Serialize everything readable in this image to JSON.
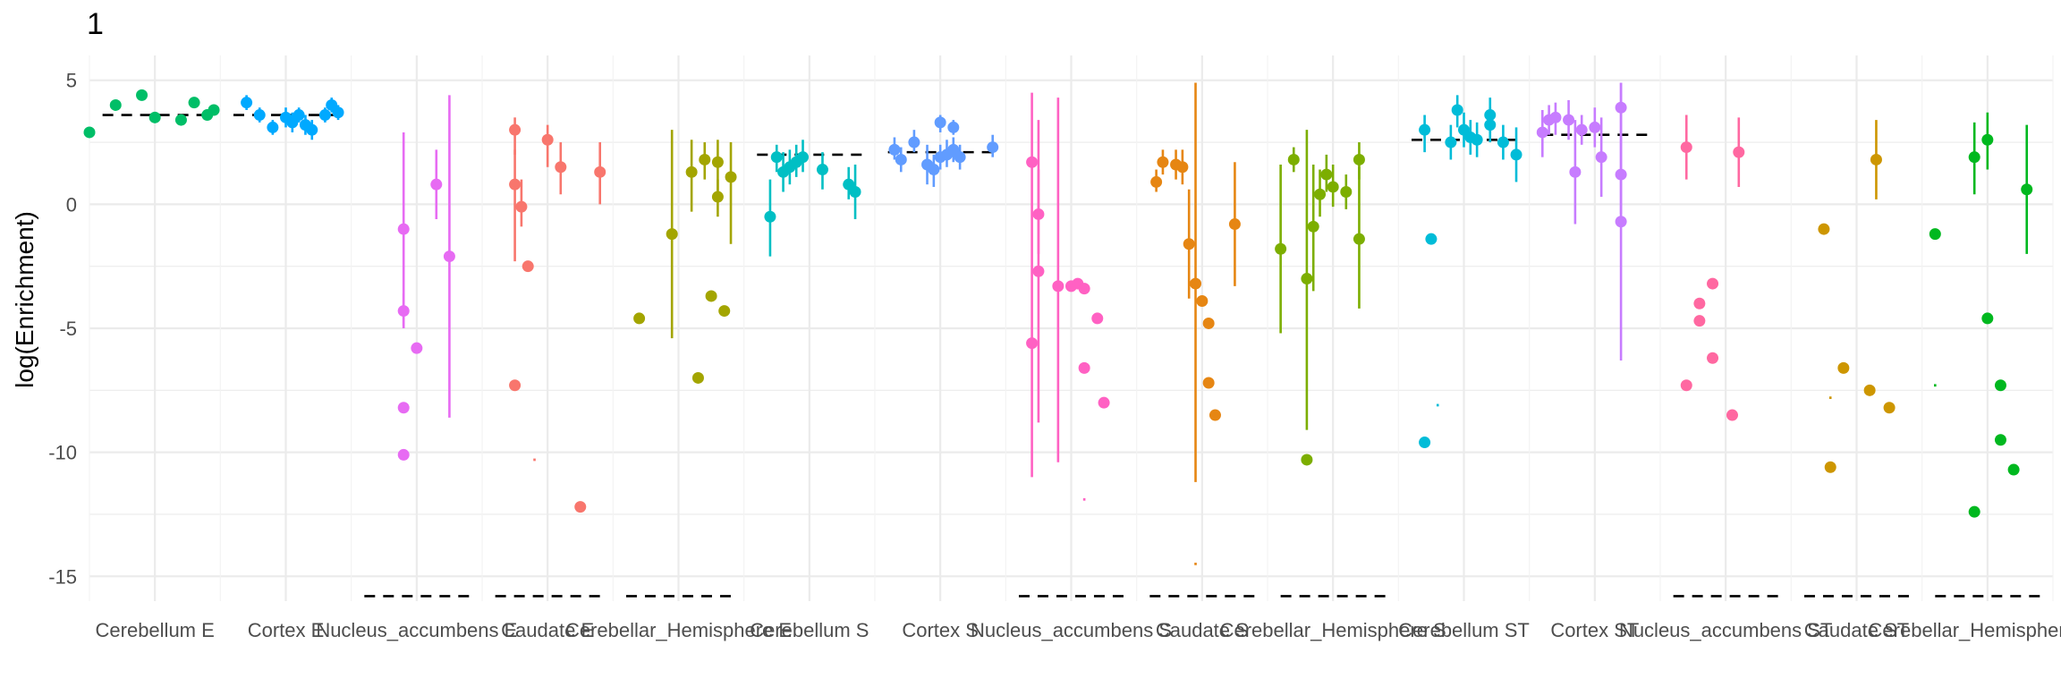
{
  "chart_data": {
    "type": "scatter",
    "title": "1",
    "xlabel": "",
    "ylabel": "log(Enrichment)",
    "ylim": [
      -16,
      6
    ],
    "yticks": [
      5,
      0,
      -5,
      -10,
      -15
    ],
    "grid": true,
    "legend": "none",
    "categories": [
      "Cerebellum E",
      "Cortex E",
      "Nucleus_accumbens E",
      "Caudate E",
      "Cerebellar_Hemisphere E",
      "Cerebellum S",
      "Cortex S",
      "Nucleus_accumbens S",
      "Caudate S",
      "Cerebellar_Hemisphere S",
      "Cerebellum ST",
      "Cortex ST",
      "Nucleus_accumbens ST",
      "Caudate ST",
      "Cerebellar_Hemisphere ST"
    ],
    "colors": [
      "#00BE67",
      "#00A9FF",
      "#E76BF3",
      "#F8766D",
      "#A3A500",
      "#00BFC4",
      "#619CFF",
      "#FF61C3",
      "#E68613",
      "#7CAE00",
      "#00BCD8",
      "#C77CFF",
      "#FF68A1",
      "#CD9600",
      "#00B81F"
    ],
    "reference_lines": [
      3.6,
      3.6,
      -15.8,
      -15.8,
      -15.8,
      2.0,
      2.1,
      -15.8,
      -15.8,
      -15.8,
      2.6,
      2.8,
      -15.8,
      -15.8,
      -15.8
    ],
    "points": [
      [
        [
          -0.5,
          2.9
        ],
        [
          -0.3,
          4.0
        ],
        [
          -0.1,
          4.4
        ],
        [
          0.0,
          3.5
        ],
        [
          0.2,
          3.4
        ],
        [
          0.3,
          4.1
        ],
        [
          0.4,
          3.6
        ],
        [
          0.45,
          3.8
        ]
      ],
      [
        [
          -0.3,
          4.1,
          3.8,
          4.4
        ],
        [
          -0.2,
          3.6,
          3.3,
          3.9
        ],
        [
          -0.1,
          3.1,
          2.8,
          3.4
        ],
        [
          0.0,
          3.5,
          3.1,
          3.9
        ],
        [
          0.05,
          3.3,
          2.9,
          3.7
        ],
        [
          0.1,
          3.6,
          3.3,
          3.9
        ],
        [
          0.15,
          3.2,
          2.8,
          3.6
        ],
        [
          0.2,
          3.0,
          2.6,
          3.4
        ],
        [
          0.3,
          3.6,
          3.3,
          3.9
        ],
        [
          0.35,
          4.0,
          3.7,
          4.3
        ],
        [
          0.4,
          3.7,
          3.4,
          4.0
        ]
      ],
      [
        [
          -0.1,
          -1.0,
          -4.9,
          2.9
        ],
        [
          -0.1,
          -4.3,
          -5.0,
          -3.6
        ],
        [
          -0.1,
          -8.2
        ],
        [
          -0.1,
          -10.1
        ],
        [
          0.0,
          -5.8
        ],
        [
          0.15,
          0.8,
          -0.6,
          2.2
        ],
        [
          0.25,
          -2.1,
          -8.6,
          4.4
        ]
      ],
      [
        [
          -0.25,
          3.0,
          2.0,
          3.5
        ],
        [
          -0.25,
          0.8,
          -2.3,
          2.2
        ],
        [
          -0.2,
          -0.1,
          -0.9,
          1.0
        ],
        [
          -0.15,
          -2.5
        ],
        [
          -0.25,
          -7.3
        ],
        [
          -0.1,
          -10.3,
          -10.25,
          -10.35
        ],
        [
          0.0,
          2.6,
          1.5,
          3.2
        ],
        [
          0.1,
          1.5,
          0.4,
          2.5
        ],
        [
          0.25,
          -12.2
        ],
        [
          0.4,
          1.3,
          0.0,
          2.5
        ]
      ],
      [
        [
          -0.05,
          -1.2,
          -5.4,
          3.0
        ],
        [
          -0.3,
          -4.6
        ],
        [
          0.1,
          1.3,
          -0.3,
          2.6
        ],
        [
          0.15,
          -7.0
        ],
        [
          0.2,
          1.8,
          1.0,
          2.5
        ],
        [
          0.25,
          -3.7
        ],
        [
          0.3,
          0.3,
          -0.5,
          1.0
        ],
        [
          0.3,
          1.7,
          0.5,
          2.6
        ],
        [
          0.35,
          -4.3
        ],
        [
          0.4,
          1.1,
          -1.6,
          2.5
        ]
      ],
      [
        [
          -0.3,
          -0.5,
          -2.1,
          1.0
        ],
        [
          -0.25,
          1.9,
          1.3,
          2.4
        ],
        [
          -0.2,
          1.3,
          0.5,
          2.1
        ],
        [
          -0.15,
          1.5,
          0.8,
          2.2
        ],
        [
          -0.1,
          1.7,
          1.1,
          2.4
        ],
        [
          -0.05,
          1.9,
          1.3,
          2.6
        ],
        [
          0.1,
          1.4,
          0.6,
          2.1
        ],
        [
          0.3,
          0.8,
          0.2,
          1.5
        ],
        [
          0.35,
          0.5,
          -0.6,
          1.6
        ]
      ],
      [
        [
          -0.35,
          2.2,
          1.8,
          2.7
        ],
        [
          -0.3,
          1.8,
          1.3,
          2.3
        ],
        [
          -0.2,
          2.5,
          2.1,
          3.0
        ],
        [
          -0.1,
          1.6,
          0.8,
          2.4
        ],
        [
          -0.05,
          1.4,
          0.7,
          2.0
        ],
        [
          0.0,
          3.3,
          2.9,
          3.6
        ],
        [
          0.0,
          1.9,
          1.4,
          2.4
        ],
        [
          0.05,
          2.0,
          1.5,
          2.6
        ],
        [
          0.1,
          3.1,
          2.8,
          3.4
        ],
        [
          0.1,
          2.2,
          1.7,
          2.7
        ],
        [
          0.15,
          1.9,
          1.4,
          2.4
        ],
        [
          0.4,
          2.3,
          1.9,
          2.8
        ]
      ],
      [
        [
          -0.3,
          1.7,
          -11.0,
          4.5
        ],
        [
          -0.25,
          -0.4,
          -2.0,
          1.4
        ],
        [
          -0.25,
          -2.7,
          -8.8,
          3.4
        ],
        [
          -0.3,
          -5.6
        ],
        [
          -0.1,
          -3.3,
          -10.4,
          4.3
        ],
        [
          0.0,
          -3.3
        ],
        [
          0.05,
          -3.2
        ],
        [
          0.1,
          -3.4
        ],
        [
          0.1,
          -6.6
        ],
        [
          0.1,
          -11.9,
          -11.85,
          -11.95
        ],
        [
          0.2,
          -4.6
        ],
        [
          0.25,
          -8.0
        ]
      ],
      [
        [
          -0.35,
          0.9,
          0.5,
          1.4
        ],
        [
          -0.3,
          1.7,
          1.2,
          2.2
        ],
        [
          -0.2,
          1.6,
          1.0,
          2.2
        ],
        [
          -0.15,
          1.5,
          0.8,
          2.2
        ],
        [
          -0.1,
          -1.6,
          -3.8,
          0.6
        ],
        [
          -0.05,
          -3.2,
          -11.2,
          4.9
        ],
        [
          0.0,
          -3.9
        ],
        [
          0.05,
          -4.8
        ],
        [
          0.05,
          -7.2
        ],
        [
          0.1,
          -8.5
        ],
        [
          0.25,
          -0.8,
          -3.3,
          1.7
        ],
        [
          -0.05,
          -14.5,
          -14.45,
          -14.55
        ]
      ],
      [
        [
          -0.4,
          -1.8,
          -5.2,
          1.6
        ],
        [
          -0.3,
          1.8,
          1.3,
          2.3
        ],
        [
          -0.2,
          -3.0,
          -9.1,
          3.0
        ],
        [
          -0.2,
          -10.3
        ],
        [
          -0.15,
          -0.9,
          -3.5,
          1.6
        ],
        [
          -0.1,
          0.4,
          -0.5,
          1.4
        ],
        [
          -0.05,
          1.2,
          0.5,
          2.0
        ],
        [
          0.0,
          0.7,
          -0.1,
          1.6
        ],
        [
          0.1,
          0.5,
          -0.2,
          1.2
        ],
        [
          0.2,
          1.8,
          1.0,
          2.5
        ],
        [
          0.2,
          -1.4,
          -4.2,
          1.5
        ]
      ],
      [
        [
          -0.3,
          3.0,
          2.1,
          3.6
        ],
        [
          -0.25,
          -1.4
        ],
        [
          -0.3,
          -9.6
        ],
        [
          -0.2,
          -8.1,
          -8.05,
          -8.15
        ],
        [
          -0.1,
          2.5,
          1.8,
          3.2
        ],
        [
          -0.05,
          3.8,
          3.1,
          4.4
        ],
        [
          0.0,
          3.0,
          2.3,
          3.7
        ],
        [
          0.05,
          2.7,
          2.0,
          3.4
        ],
        [
          0.1,
          2.6,
          1.9,
          3.3
        ],
        [
          0.2,
          3.6,
          2.9,
          4.3
        ],
        [
          0.3,
          2.5,
          1.8,
          3.2
        ],
        [
          0.4,
          2.0,
          0.9,
          3.1
        ],
        [
          0.2,
          3.2,
          2.5,
          3.9
        ]
      ],
      [
        [
          -0.4,
          2.9,
          1.9,
          3.8
        ],
        [
          -0.35,
          3.4,
          2.8,
          4.0
        ],
        [
          -0.3,
          3.5,
          2.8,
          4.1
        ],
        [
          -0.2,
          3.4,
          2.6,
          4.2
        ],
        [
          -0.15,
          1.3,
          -0.8,
          3.4
        ],
        [
          -0.1,
          3.0,
          2.4,
          3.6
        ],
        [
          0.0,
          3.1,
          2.3,
          3.9
        ],
        [
          0.05,
          1.9,
          0.3,
          3.5
        ],
        [
          0.2,
          3.9,
          2.8,
          4.9
        ],
        [
          0.2,
          1.2,
          -0.4,
          2.8
        ],
        [
          0.2,
          -0.7,
          -6.3,
          4.9
        ]
      ],
      [
        [
          -0.3,
          2.3,
          1.0,
          3.6
        ],
        [
          -0.3,
          -7.3
        ],
        [
          -0.2,
          -4.0
        ],
        [
          -0.2,
          -4.7
        ],
        [
          -0.1,
          -3.2
        ],
        [
          -0.1,
          -6.2
        ],
        [
          0.05,
          -8.5
        ],
        [
          0.1,
          2.1,
          0.7,
          3.5
        ]
      ],
      [
        [
          -0.25,
          -1.0
        ],
        [
          -0.2,
          -7.8,
          -7.75,
          -7.85
        ],
        [
          -0.2,
          -10.6
        ],
        [
          -0.1,
          -6.6
        ],
        [
          0.1,
          -7.5
        ],
        [
          0.15,
          1.8,
          0.2,
          3.4
        ],
        [
          0.25,
          -8.2
        ]
      ],
      [
        [
          -0.4,
          -1.2
        ],
        [
          -0.4,
          -7.3,
          -7.25,
          -7.35
        ],
        [
          -0.1,
          1.9,
          0.4,
          3.3
        ],
        [
          -0.1,
          -12.4
        ],
        [
          0.0,
          2.6,
          1.4,
          3.7
        ],
        [
          0.0,
          -4.6
        ],
        [
          0.1,
          -7.3
        ],
        [
          0.1,
          -9.5
        ],
        [
          0.2,
          -10.7
        ],
        [
          0.3,
          0.6,
          -2.0,
          3.2
        ]
      ]
    ]
  }
}
